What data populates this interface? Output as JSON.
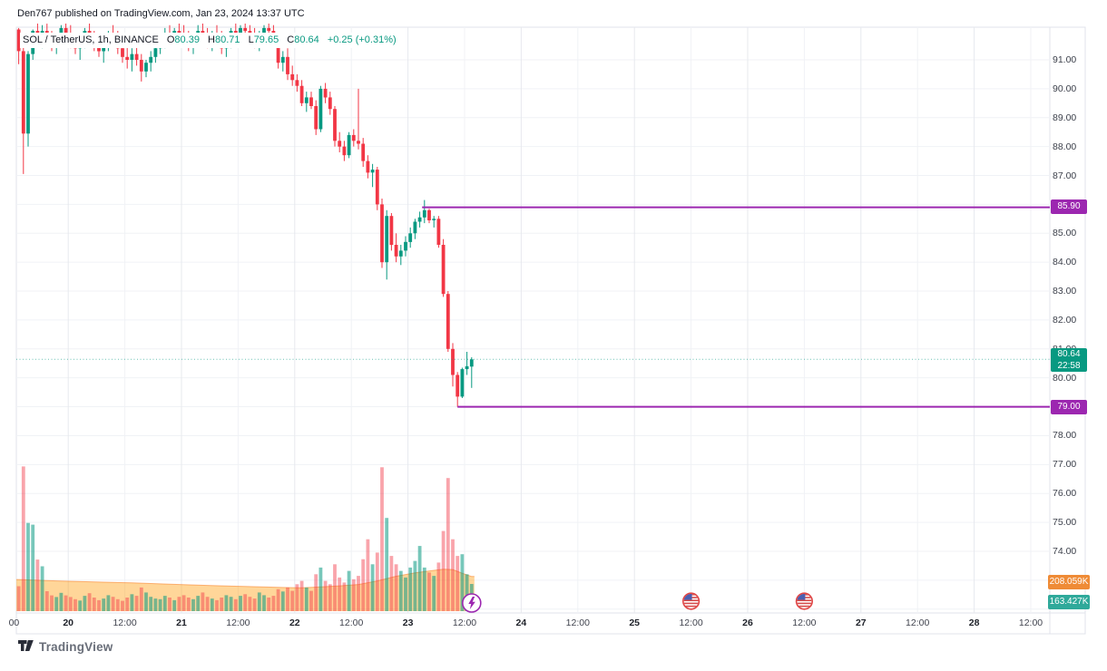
{
  "attribution": {
    "text": "Den767 published on TradingView.com, Jan 23, 2024 13:37 UTC"
  },
  "legend": {
    "symbol": "SOL / TetherUS, 1h, BINANCE",
    "ohlc": {
      "o_label": "O",
      "o_value": "80.39",
      "h_label": "H",
      "h_value": "80.71",
      "l_label": "L",
      "l_value": "79.65",
      "c_label": "C",
      "c_value": "80.64",
      "change": "+0.25 (+0.31%)"
    }
  },
  "price_axis": {
    "ticks": [
      "91.00",
      "90.00",
      "89.00",
      "88.00",
      "87.00",
      "86.00",
      "85.00",
      "84.00",
      "83.00",
      "82.00",
      "81.00",
      "80.00",
      "79.00",
      "78.00",
      "77.00",
      "76.00",
      "75.00",
      "74.00"
    ],
    "hidden_tick_values_behind_badges": [
      "86.00"
    ],
    "badges": {
      "level_high": "85.90",
      "last_price": "80.64",
      "countdown": "22:58",
      "level_low": "79.00",
      "volume_ma": "208.059K",
      "volume_last": "163.427K"
    }
  },
  "time_axis": {
    "ticks": [
      {
        "label": "00",
        "idx": -0.5
      },
      {
        "label": "20",
        "idx": 11,
        "day": true
      },
      {
        "label": "12:00",
        "idx": 23
      },
      {
        "label": "21",
        "idx": 35,
        "day": true
      },
      {
        "label": "12:00",
        "idx": 47
      },
      {
        "label": "22",
        "idx": 59,
        "day": true
      },
      {
        "label": "12:00",
        "idx": 71
      },
      {
        "label": "23",
        "idx": 83,
        "day": true
      },
      {
        "label": "12:00",
        "idx": 95
      },
      {
        "label": "24",
        "idx": 107,
        "day": true
      },
      {
        "label": "12:00",
        "idx": 119
      },
      {
        "label": "25",
        "idx": 131,
        "day": true
      },
      {
        "label": "12:00",
        "idx": 143
      },
      {
        "label": "26",
        "idx": 155,
        "day": true
      },
      {
        "label": "12:00",
        "idx": 167
      },
      {
        "label": "27",
        "idx": 179,
        "day": true
      },
      {
        "label": "12:00",
        "idx": 191
      },
      {
        "label": "28",
        "idx": 203,
        "day": true
      },
      {
        "label": "12:00",
        "idx": 215
      }
    ]
  },
  "markers": {
    "idea_marker": {
      "icon": "lightning-icon",
      "idx": 96
    },
    "economic_events": [
      {
        "icon": "us-flag-icon",
        "idx": 143
      },
      {
        "icon": "us-flag-icon",
        "idx": 167
      }
    ]
  },
  "footer": {
    "brand": "TradingView"
  },
  "colors": {
    "up": "#089981",
    "down": "#f23645",
    "vol_up": "rgba(8,153,129,0.55)",
    "vol_down": "rgba(242,54,69,0.45)",
    "vol_ma_fill": "rgba(255,152,0,0.40)",
    "vol_ma_edge": "rgba(247,124,32,0.55)",
    "level_line": "#9c27b0",
    "level_badge": "#9c27b0",
    "last_badge": "#089981",
    "vol_ma_badge": "#ef8b36",
    "vol_last_badge": "#2fa99a",
    "grid": "#f0f2f6",
    "grid_day": "#e7e9ee",
    "frame": "#e0e3eb",
    "text_dark": "#131722",
    "text_axis": "#3c404b"
  },
  "chart_data": {
    "type": "candlestick",
    "symbol": "SOL/TetherUS",
    "exchange": "BINANCE",
    "interval": "1h",
    "start_time": "2024-01-19 13:00 UTC",
    "end_time": "2024-01-23 13:00 UTC (open bar, closes in 22:58)",
    "visible_price_range": [
      72.0,
      92.1
    ],
    "visible_time_range": "Jan 19 12:00 UTC - Jan 28 24:00 UTC",
    "horizontal_levels": [
      85.9,
      79.0
    ],
    "last_bar": {
      "o": 80.39,
      "h": 80.71,
      "l": 79.65,
      "c": 80.64,
      "change": "+0.25 (+0.31%)",
      "volume": "163.427K",
      "volume_ma": "208.059K",
      "countdown": "22:58"
    },
    "candles_ohlc": [
      [
        92.05,
        92.1,
        90.85,
        91.3
      ],
      [
        91.3,
        91.45,
        87.05,
        88.45
      ],
      [
        88.45,
        91.3,
        88.0,
        91.2
      ],
      [
        91.2,
        92.05,
        91.0,
        92.0
      ],
      [
        92.0,
        92.3,
        91.5,
        91.8
      ],
      [
        91.8,
        92.2,
        91.4,
        92.0
      ],
      [
        92.0,
        92.25,
        91.6,
        91.7
      ],
      [
        91.7,
        92.0,
        91.3,
        91.5
      ],
      [
        91.5,
        91.9,
        91.2,
        91.8
      ],
      [
        91.8,
        92.2,
        91.5,
        92.1
      ],
      [
        92.1,
        92.3,
        91.7,
        91.9
      ],
      [
        91.9,
        92.2,
        91.4,
        91.6
      ],
      [
        91.6,
        91.9,
        91.2,
        91.4
      ],
      [
        91.4,
        91.8,
        91.0,
        91.7
      ],
      [
        91.7,
        92.1,
        91.4,
        92.0
      ],
      [
        92.0,
        92.3,
        91.6,
        91.8
      ],
      [
        91.8,
        92.0,
        91.3,
        91.5
      ],
      [
        91.5,
        91.8,
        91.1,
        91.3
      ],
      [
        91.3,
        91.7,
        90.9,
        91.6
      ],
      [
        91.6,
        92.0,
        91.3,
        91.9
      ],
      [
        91.9,
        92.2,
        91.5,
        91.7
      ],
      [
        91.7,
        92.0,
        91.2,
        91.4
      ],
      [
        91.4,
        91.7,
        90.9,
        91.1
      ],
      [
        91.1,
        91.5,
        90.7,
        91.0
      ],
      [
        91.0,
        91.4,
        90.6,
        91.2
      ],
      [
        91.2,
        91.5,
        90.8,
        91.0
      ],
      [
        91.0,
        91.2,
        90.25,
        90.6
      ],
      [
        90.6,
        91.0,
        90.4,
        90.9
      ],
      [
        90.9,
        91.3,
        90.6,
        91.1
      ],
      [
        91.1,
        91.6,
        90.9,
        91.4
      ],
      [
        91.4,
        91.9,
        91.2,
        91.7
      ],
      [
        91.7,
        92.1,
        91.4,
        91.9
      ],
      [
        91.9,
        92.2,
        91.6,
        91.8
      ],
      [
        91.8,
        92.1,
        91.5,
        92.0
      ],
      [
        92.0,
        92.3,
        91.7,
        91.9
      ],
      [
        91.9,
        92.2,
        91.5,
        91.7
      ],
      [
        91.7,
        92.0,
        91.3,
        91.5
      ],
      [
        91.5,
        91.9,
        91.2,
        91.8
      ],
      [
        91.8,
        92.2,
        91.5,
        92.0
      ],
      [
        92.0,
        92.3,
        91.6,
        91.8
      ],
      [
        91.8,
        92.1,
        91.4,
        91.6
      ],
      [
        91.6,
        92.0,
        91.3,
        91.9
      ],
      [
        91.9,
        92.2,
        91.5,
        91.7
      ],
      [
        91.7,
        92.0,
        91.2,
        91.4
      ],
      [
        91.4,
        91.8,
        91.1,
        91.7
      ],
      [
        91.7,
        92.1,
        91.4,
        92.0
      ],
      [
        92.0,
        92.3,
        91.7,
        91.8
      ],
      [
        91.8,
        92.2,
        91.5,
        92.1
      ],
      [
        92.1,
        92.3,
        91.8,
        92.0
      ],
      [
        92.0,
        92.2,
        91.6,
        91.8
      ],
      [
        91.8,
        92.1,
        91.4,
        91.6
      ],
      [
        91.6,
        92.0,
        91.3,
        91.9
      ],
      [
        91.9,
        92.2,
        91.5,
        92.1
      ],
      [
        92.1,
        92.4,
        91.8,
        92.0
      ],
      [
        92.0,
        92.2,
        91.5,
        91.7
      ],
      [
        91.7,
        91.9,
        90.7,
        90.9
      ],
      [
        90.9,
        91.3,
        90.6,
        91.1
      ],
      [
        91.1,
        91.4,
        90.3,
        90.5
      ],
      [
        90.5,
        90.8,
        90.1,
        90.3
      ],
      [
        90.3,
        90.5,
        89.9,
        90.1
      ],
      [
        90.1,
        90.3,
        89.4,
        89.5
      ],
      [
        89.5,
        89.9,
        89.2,
        89.7
      ],
      [
        89.7,
        89.9,
        89.3,
        89.4
      ],
      [
        89.4,
        89.6,
        88.4,
        88.6
      ],
      [
        88.6,
        90.1,
        88.5,
        90.0
      ],
      [
        90.0,
        90.2,
        89.5,
        89.7
      ],
      [
        89.7,
        89.9,
        89.1,
        89.3
      ],
      [
        89.3,
        89.4,
        88.0,
        88.2
      ],
      [
        88.2,
        88.5,
        87.8,
        88.0
      ],
      [
        88.0,
        88.2,
        87.5,
        87.7
      ],
      [
        87.7,
        88.5,
        87.6,
        88.4
      ],
      [
        88.4,
        88.6,
        88.0,
        88.2
      ],
      [
        88.2,
        90.0,
        87.9,
        88.1
      ],
      [
        88.1,
        88.3,
        87.3,
        87.5
      ],
      [
        87.5,
        87.7,
        86.9,
        87.1
      ],
      [
        87.1,
        87.4,
        86.6,
        87.2
      ],
      [
        87.2,
        87.3,
        85.8,
        86.0
      ],
      [
        86.0,
        86.2,
        83.8,
        84.0
      ],
      [
        84.0,
        85.8,
        83.4,
        85.6
      ],
      [
        85.6,
        85.7,
        84.4,
        84.6
      ],
      [
        84.6,
        85.0,
        84.0,
        84.2
      ],
      [
        84.2,
        84.6,
        83.9,
        84.4
      ],
      [
        84.4,
        84.9,
        84.2,
        84.7
      ],
      [
        84.7,
        85.2,
        84.5,
        85.0
      ],
      [
        85.0,
        85.5,
        84.8,
        85.4
      ],
      [
        85.4,
        85.75,
        85.2,
        85.55
      ],
      [
        85.55,
        86.15,
        85.35,
        85.8
      ],
      [
        85.8,
        85.85,
        85.35,
        85.45
      ],
      [
        85.45,
        85.6,
        85.2,
        85.5
      ],
      [
        85.5,
        85.6,
        84.5,
        84.6
      ],
      [
        84.6,
        84.8,
        82.8,
        82.9
      ],
      [
        82.9,
        83.0,
        80.9,
        81.0
      ],
      [
        81.0,
        81.2,
        79.7,
        80.1
      ],
      [
        80.1,
        80.2,
        79.0,
        79.35
      ],
      [
        79.35,
        80.35,
        79.3,
        80.3
      ],
      [
        80.3,
        80.9,
        80.1,
        80.4
      ],
      [
        80.39,
        80.71,
        79.65,
        80.64
      ]
    ],
    "volumes_k": [
      150,
      870,
      530,
      520,
      310,
      270,
      120,
      95,
      85,
      110,
      95,
      85,
      72,
      64,
      92,
      108,
      82,
      66,
      76,
      96,
      86,
      72,
      62,
      82,
      102,
      92,
      142,
      112,
      86,
      76,
      72,
      92,
      82,
      66,
      86,
      96,
      82,
      72,
      92,
      112,
      86,
      76,
      66,
      82,
      96,
      86,
      72,
      92,
      102,
      86,
      76,
      112,
      96,
      82,
      92,
      132,
      118,
      142,
      122,
      162,
      182,
      142,
      122,
      222,
      262,
      182,
      162,
      282,
      202,
      172,
      242,
      192,
      212,
      312,
      432,
      282,
      352,
      865,
      560,
      332,
      282,
      242,
      202,
      262,
      302,
      392,
      262,
      232,
      212,
      292,
      482,
      800,
      432,
      332,
      342,
      222,
      163.427
    ],
    "volume_ma_points_idx_k": [
      [
        0,
        190
      ],
      [
        8,
        182
      ],
      [
        16,
        176
      ],
      [
        24,
        170
      ],
      [
        32,
        162
      ],
      [
        40,
        155
      ],
      [
        48,
        148
      ],
      [
        56,
        142
      ],
      [
        60,
        140
      ],
      [
        64,
        146
      ],
      [
        68,
        152
      ],
      [
        72,
        160
      ],
      [
        76,
        182
      ],
      [
        80,
        210
      ],
      [
        84,
        230
      ],
      [
        88,
        245
      ],
      [
        90,
        252
      ],
      [
        92,
        250
      ],
      [
        94,
        228
      ],
      [
        96,
        208.059
      ]
    ]
  }
}
